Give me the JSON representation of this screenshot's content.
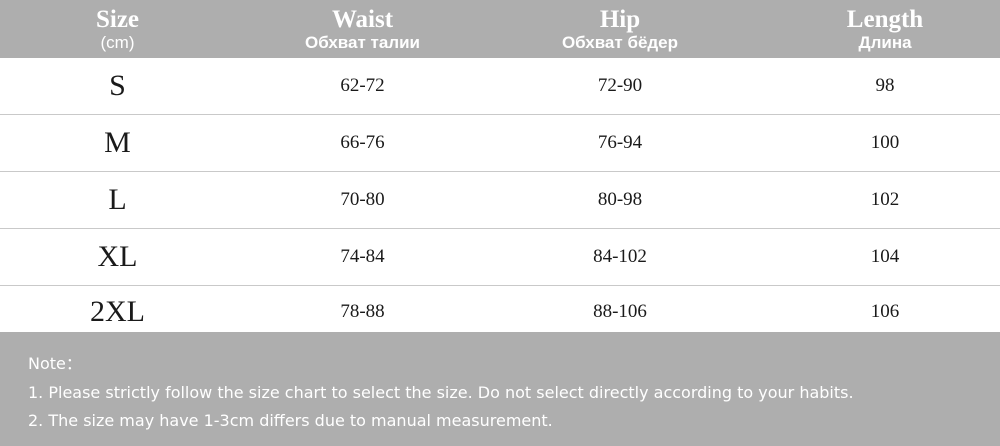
{
  "header": {
    "size": {
      "en": "Size",
      "unit": "(cm)"
    },
    "waist": {
      "en": "Waist",
      "ru": "Обхват талии"
    },
    "hip": {
      "en": "Hip",
      "ru": "Обхват бёдер"
    },
    "length": {
      "en": "Length",
      "ru": "Длина"
    }
  },
  "rows": [
    {
      "size": "S",
      "waist": "62-72",
      "hip": "72-90",
      "length": "98"
    },
    {
      "size": "M",
      "waist": "66-76",
      "hip": "76-94",
      "length": "100"
    },
    {
      "size": "L",
      "waist": "70-80",
      "hip": "80-98",
      "length": "102"
    },
    {
      "size": "XL",
      "waist": "74-84",
      "hip": "84-102",
      "length": "104"
    },
    {
      "size": "2XL",
      "waist": "78-88",
      "hip": "88-106",
      "length": "106"
    }
  ],
  "notes": {
    "title": "Note：",
    "line1": "1. Please strictly follow the size chart to select the size. Do not select directly according to your habits.",
    "line2": "2. The size may have 1-3cm differs due to manual measurement."
  }
}
